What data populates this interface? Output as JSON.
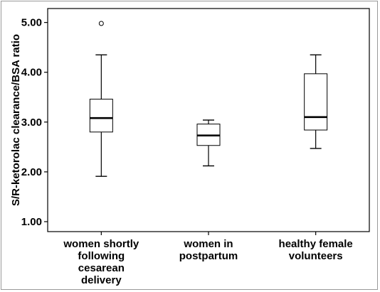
{
  "chart_data": {
    "type": "box",
    "ylabel": "S/R-ketorolac clearance/BSA ratio",
    "ylim": [
      0.8,
      5.28
    ],
    "yticks": [
      "1.00",
      "2.00",
      "3.00",
      "4.00",
      "5.00"
    ],
    "grid": false,
    "categories": [
      {
        "lines": [
          "women shortly",
          "following",
          "cesarean",
          "delivery"
        ],
        "min": 1.91,
        "q1": 2.8,
        "median": 3.08,
        "q3": 3.46,
        "max": 4.35,
        "outliers": [
          4.98
        ]
      },
      {
        "lines": [
          "women in",
          "postpartum"
        ],
        "min": 2.12,
        "q1": 2.53,
        "median": 2.73,
        "q3": 2.96,
        "max": 3.04,
        "outliers": []
      },
      {
        "lines": [
          "healthy female",
          "volunteers"
        ],
        "min": 2.47,
        "q1": 2.84,
        "median": 3.1,
        "q3": 3.97,
        "max": 4.35,
        "outliers": []
      }
    ]
  }
}
